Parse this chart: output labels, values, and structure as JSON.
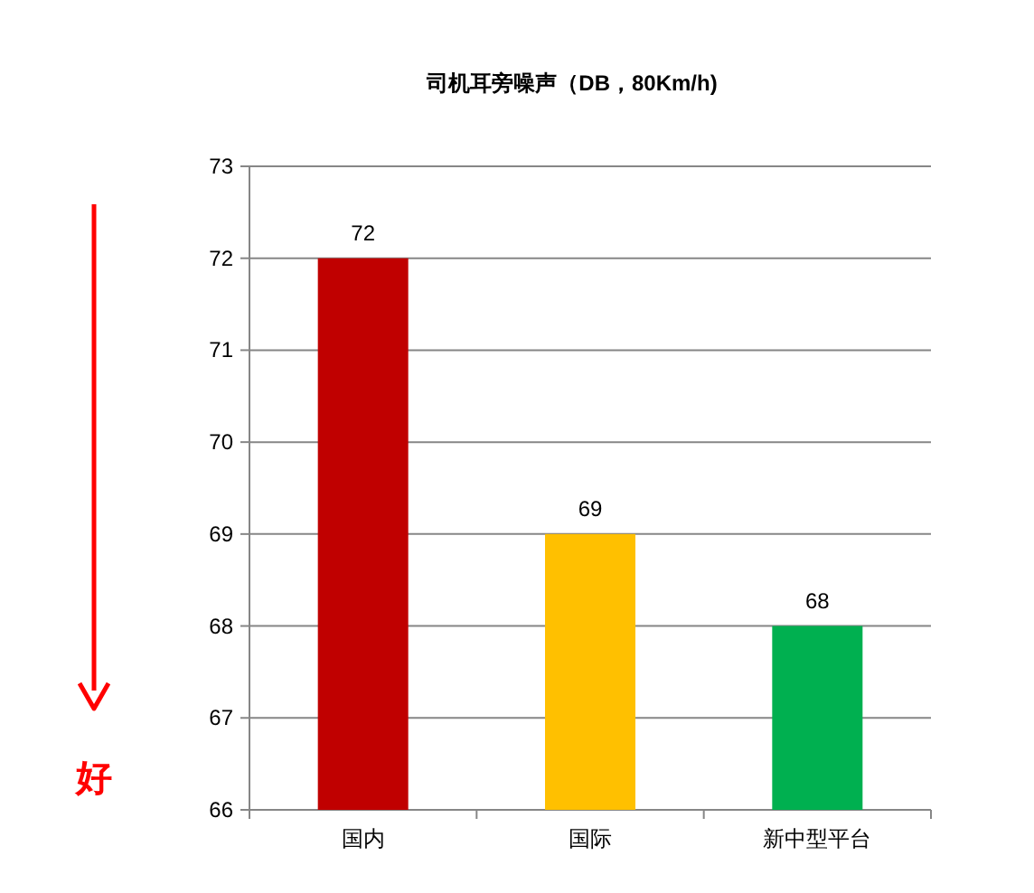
{
  "chart_data": {
    "type": "bar",
    "title": "司机耳旁噪声（DB，80Km/h)",
    "categories": [
      "国内",
      "国际",
      "新中型平台"
    ],
    "values": [
      72,
      69,
      68
    ],
    "colors": [
      "#c00000",
      "#ffc000",
      "#00b050"
    ],
    "ylim": [
      66,
      73
    ],
    "yticks": [
      66,
      67,
      68,
      69,
      70,
      71,
      72,
      73
    ],
    "grid": "y",
    "data_labels": true,
    "annotations": [
      "好"
    ]
  }
}
